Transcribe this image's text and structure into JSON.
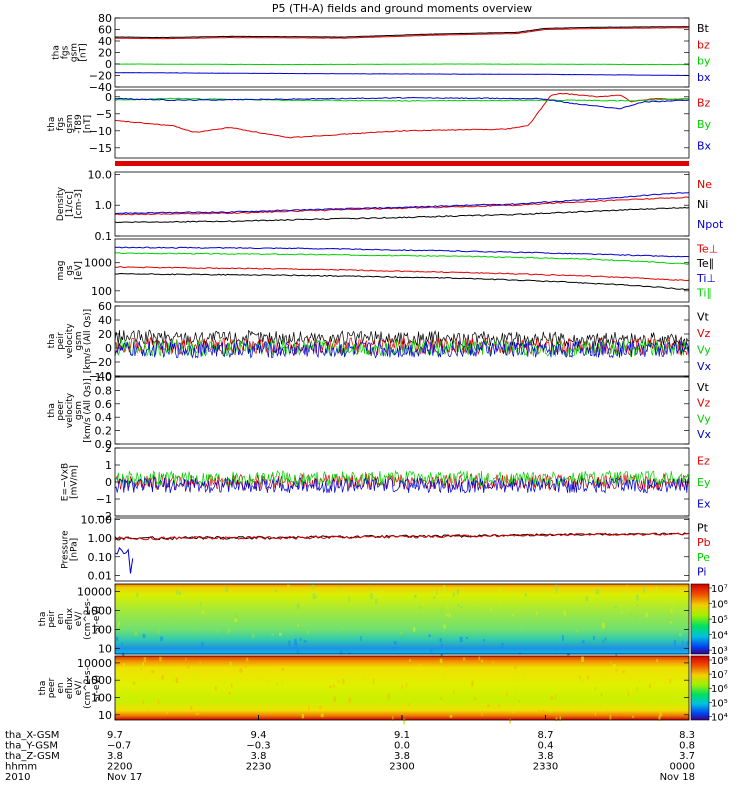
{
  "title": "P5 (TH-A) fields and ground moments overview",
  "colors": {
    "black": "#000000",
    "red": "#e00000",
    "green": "#00d000",
    "blue": "#0000d0"
  },
  "chart_data": [
    {
      "id": "fgs",
      "type": "line",
      "ylabel_lines": [
        "tha",
        "fgs",
        "gsm",
        "[nT]"
      ],
      "ylim": [
        -40,
        80
      ],
      "yticks": [
        {
          "v": 80,
          "t": "80"
        },
        {
          "v": 60,
          "t": "60"
        },
        {
          "v": 40,
          "t": "40"
        },
        {
          "v": 20,
          "t": "20"
        },
        {
          "v": 0,
          "t": "0"
        },
        {
          "v": -20,
          "t": "−20"
        },
        {
          "v": -40,
          "t": "−40"
        }
      ],
      "series": [
        {
          "name": "Bt",
          "color": "black",
          "points": [
            [
              0,
              47
            ],
            [
              0.08,
              46
            ],
            [
              0.2,
              48
            ],
            [
              0.4,
              47
            ],
            [
              0.55,
              52
            ],
            [
              0.7,
              55
            ],
            [
              0.75,
              62
            ],
            [
              0.85,
              64
            ],
            [
              1,
              65
            ]
          ]
        },
        {
          "name": "bz",
          "color": "red",
          "points": [
            [
              0,
              45
            ],
            [
              0.08,
              44
            ],
            [
              0.2,
              46
            ],
            [
              0.4,
              45
            ],
            [
              0.55,
              50
            ],
            [
              0.7,
              53
            ],
            [
              0.75,
              60
            ],
            [
              0.85,
              62
            ],
            [
              1,
              63
            ]
          ]
        },
        {
          "name": "by",
          "color": "green",
          "points": [
            [
              0,
              0
            ],
            [
              0.3,
              -1
            ],
            [
              0.6,
              0
            ],
            [
              1,
              -1
            ]
          ]
        },
        {
          "name": "bx",
          "color": "blue",
          "points": [
            [
              0,
              -15
            ],
            [
              0.4,
              -17
            ],
            [
              0.75,
              -18
            ],
            [
              1,
              -20
            ]
          ]
        }
      ]
    },
    {
      "id": "fgs-dip",
      "type": "line",
      "ylabel_lines": [
        "tha",
        "fgs",
        "gsm",
        "-T89",
        "[nT]"
      ],
      "ylim": [
        -18,
        2
      ],
      "yticks": [
        {
          "v": 0,
          "t": "0"
        },
        {
          "v": -5,
          "t": "−5"
        },
        {
          "v": -10,
          "t": "−10"
        },
        {
          "v": -15,
          "t": "−15"
        }
      ],
      "series": [
        {
          "name": "Bz",
          "color": "red",
          "points": [
            [
              0,
              -7
            ],
            [
              0.1,
              -8.5
            ],
            [
              0.14,
              -10.5
            ],
            [
              0.2,
              -9
            ],
            [
              0.3,
              -12
            ],
            [
              0.5,
              -10
            ],
            [
              0.68,
              -9.5
            ],
            [
              0.72,
              -8.5
            ],
            [
              0.76,
              0.5
            ],
            [
              0.78,
              1
            ],
            [
              0.84,
              0
            ],
            [
              0.88,
              0.5
            ],
            [
              0.9,
              -1.5
            ],
            [
              0.94,
              -0.5
            ],
            [
              1,
              -1
            ]
          ]
        },
        {
          "name": "By",
          "color": "green",
          "points": [
            [
              0,
              -1
            ],
            [
              0.1,
              -0.5
            ],
            [
              0.3,
              -1
            ],
            [
              0.5,
              -1.2
            ],
            [
              0.72,
              -1
            ],
            [
              0.8,
              -1
            ],
            [
              0.9,
              -1.2
            ],
            [
              1,
              -0.5
            ]
          ]
        },
        {
          "name": "Bx",
          "color": "blue",
          "points": [
            [
              0,
              -0.5
            ],
            [
              0.1,
              -1
            ],
            [
              0.3,
              -0.7
            ],
            [
              0.5,
              -0.3
            ],
            [
              0.7,
              -0.5
            ],
            [
              0.74,
              -0.5
            ],
            [
              0.8,
              -2
            ],
            [
              0.88,
              -3.5
            ],
            [
              0.92,
              -1.5
            ],
            [
              1,
              -1
            ]
          ]
        }
      ]
    },
    {
      "id": "density",
      "type": "line",
      "scale": "log",
      "ylabel_lines": [
        "Density",
        "[1/cc]",
        "[cm-3]"
      ],
      "ylim": [
        0.1,
        12
      ],
      "yticks": [
        {
          "v": 10,
          "t": "10.0"
        },
        {
          "v": 1,
          "t": "1.0"
        },
        {
          "v": 0.1,
          "t": "0.1"
        }
      ],
      "series": [
        {
          "name": "Ne",
          "color": "red",
          "points": [
            [
              0,
              0.5
            ],
            [
              0.2,
              0.55
            ],
            [
              0.5,
              0.8
            ],
            [
              0.7,
              1
            ],
            [
              0.85,
              1.4
            ],
            [
              1,
              1.8
            ]
          ]
        },
        {
          "name": "Ni",
          "color": "black",
          "points": [
            [
              0,
              0.28
            ],
            [
              0.2,
              0.3
            ],
            [
              0.5,
              0.4
            ],
            [
              0.7,
              0.5
            ],
            [
              0.85,
              0.65
            ],
            [
              1,
              0.85
            ]
          ]
        },
        {
          "name": "Npot",
          "color": "blue",
          "points": [
            [
              0,
              0.55
            ],
            [
              0.2,
              0.6
            ],
            [
              0.5,
              0.85
            ],
            [
              0.7,
              1.1
            ],
            [
              0.85,
              1.6
            ],
            [
              1,
              2.6
            ]
          ]
        }
      ]
    },
    {
      "id": "temperature",
      "type": "line",
      "scale": "log",
      "ylabel_lines": [
        "mag",
        "gs",
        "[eV]"
      ],
      "ylim": [
        40,
        7000
      ],
      "yticks": [
        {
          "v": 1000,
          "t": "1000"
        },
        {
          "v": 100,
          "t": "100"
        }
      ],
      "series": [
        {
          "name": "Te⊥",
          "color": "red",
          "points": [
            [
              0,
              700
            ],
            [
              0.3,
              600
            ],
            [
              0.6,
              450
            ],
            [
              0.8,
              350
            ],
            [
              1,
              230
            ]
          ]
        },
        {
          "name": "Te∥",
          "color": "black",
          "points": [
            [
              0,
              400
            ],
            [
              0.3,
              360
            ],
            [
              0.6,
              280
            ],
            [
              0.8,
              200
            ],
            [
              1,
              110
            ]
          ]
        },
        {
          "name": "Ti⊥",
          "color": "blue",
          "points": [
            [
              0,
              3500
            ],
            [
              0.3,
              3300
            ],
            [
              0.6,
              2600
            ],
            [
              0.8,
              2100
            ],
            [
              1,
              1600
            ]
          ]
        },
        {
          "name": "Ti∥",
          "color": "green",
          "points": [
            [
              0,
              2200
            ],
            [
              0.3,
              2000
            ],
            [
              0.6,
              1700
            ],
            [
              0.8,
              1400
            ],
            [
              1,
              900
            ]
          ]
        }
      ]
    },
    {
      "id": "peir-velocity",
      "type": "line",
      "ylabel_lines": [
        "tha",
        "peir",
        "velocity",
        "gsm",
        "[km/s (All Qs)]"
      ],
      "ylim": [
        -40,
        60
      ],
      "yticks": [
        {
          "v": 60,
          "t": "60"
        },
        {
          "v": 40,
          "t": "40"
        },
        {
          "v": 20,
          "t": "20"
        },
        {
          "v": 0,
          "t": "0"
        },
        {
          "v": -20,
          "t": "−20"
        },
        {
          "v": -40,
          "t": "−40"
        }
      ],
      "series": [
        {
          "name": "Vt",
          "color": "black",
          "points": [
            [
              0,
              15
            ],
            [
              1,
              12
            ]
          ]
        },
        {
          "name": "Vz",
          "color": "red",
          "points": [
            [
              0,
              3
            ],
            [
              1,
              2
            ]
          ]
        },
        {
          "name": "Vy",
          "color": "green",
          "points": [
            [
              0,
              0
            ],
            [
              1,
              0
            ]
          ]
        },
        {
          "name": "Vx",
          "color": "blue",
          "points": [
            [
              0,
              -2
            ],
            [
              1,
              -2
            ]
          ]
        }
      ]
    },
    {
      "id": "peer-velocity",
      "type": "line",
      "ylabel_lines": [
        "tha",
        "peer",
        "velocity",
        "gsm",
        "[km/s (All Qs)]"
      ],
      "ylim": [
        0,
        1
      ],
      "yticks": [
        {
          "v": 1,
          "t": "1.0"
        },
        {
          "v": 0.8,
          "t": "0.8"
        },
        {
          "v": 0.6,
          "t": "0.6"
        },
        {
          "v": 0.4,
          "t": "0.4"
        },
        {
          "v": 0.2,
          "t": "0.2"
        },
        {
          "v": 0,
          "t": "0.0"
        }
      ],
      "series": [
        {
          "name": "Vt",
          "color": "black",
          "points": []
        },
        {
          "name": "Vz",
          "color": "red",
          "points": []
        },
        {
          "name": "Vy",
          "color": "green",
          "points": []
        },
        {
          "name": "Vx",
          "color": "blue",
          "points": []
        }
      ]
    },
    {
      "id": "efield",
      "type": "line",
      "ylabel_lines": [
        "E=−VxB",
        "[mV/m]"
      ],
      "ylim": [
        -2,
        2
      ],
      "yticks": [
        {
          "v": 2,
          "t": "2"
        },
        {
          "v": 1,
          "t": "1"
        },
        {
          "v": 0,
          "t": "0"
        },
        {
          "v": -1,
          "t": "−1"
        },
        {
          "v": -2,
          "t": "−2"
        }
      ],
      "series": [
        {
          "name": "Ez",
          "color": "red",
          "points": [
            [
              0,
              0
            ],
            [
              1,
              0
            ]
          ]
        },
        {
          "name": "Ey",
          "color": "green",
          "points": [
            [
              0,
              0.2
            ],
            [
              1,
              0.2
            ]
          ]
        },
        {
          "name": "Ex",
          "color": "blue",
          "points": [
            [
              0,
              -0.2
            ],
            [
              1,
              -0.2
            ]
          ]
        }
      ]
    },
    {
      "id": "pressure",
      "type": "line",
      "scale": "log",
      "ylabel_lines": [
        "Pressure",
        "[nPa]"
      ],
      "ylim": [
        0.005,
        12
      ],
      "yticks": [
        {
          "v": 10,
          "t": "10.00"
        },
        {
          "v": 1,
          "t": "1.00"
        },
        {
          "v": 0.1,
          "t": "0.10"
        },
        {
          "v": 0.01,
          "t": "0.01"
        }
      ],
      "series": [
        {
          "name": "Pt",
          "color": "black",
          "points": [
            [
              0,
              1
            ],
            [
              0.3,
              1.1
            ],
            [
              0.6,
              1.3
            ],
            [
              0.8,
              1.6
            ],
            [
              1,
              1.7
            ]
          ]
        },
        {
          "name": "Pb",
          "color": "red",
          "points": [
            [
              0,
              0.97
            ],
            [
              0.3,
              1.07
            ],
            [
              0.6,
              1.27
            ],
            [
              0.8,
              1.55
            ],
            [
              1,
              1.65
            ]
          ]
        },
        {
          "name": "Pe",
          "color": "green",
          "points": [
            [
              0,
              0.03
            ],
            [
              0.1,
              0.025
            ],
            [
              0.3,
              0.027
            ],
            [
              0.5,
              0.025
            ],
            [
              0.7,
              0.03
            ],
            [
              0.8,
              0.028
            ],
            [
              1,
              0.03
            ]
          ]
        },
        {
          "name": "Pi",
          "color": "blue",
          "points": [
            [
              0,
              0.12
            ],
            [
              0.5,
              0.11
            ],
            [
              1,
              0.1
            ]
          ]
        }
      ]
    },
    {
      "id": "peir-spectrogram",
      "type": "heatmap",
      "ylabel_lines": [
        "tha",
        "peir",
        "en",
        "eflux",
        "eV/",
        "(cm^2-s-",
        "sr-eV)"
      ],
      "ylim": [
        5,
        25000
      ],
      "yticks": [
        {
          "v": 10000,
          "t": "10000"
        },
        {
          "v": 1000,
          "t": "1000"
        },
        {
          "v": 100,
          "t": "100"
        },
        {
          "v": 10,
          "t": "10"
        }
      ],
      "colorbar": {
        "min_exp": 3,
        "max_exp": 7,
        "labels": [
          "10⁷",
          "10⁶",
          "10⁵",
          "10⁴",
          "10³"
        ]
      }
    },
    {
      "id": "peer-spectrogram",
      "type": "heatmap",
      "ylabel_lines": [
        "tha",
        "peer",
        "en",
        "eflux",
        "eV/",
        "(cm^2-s-",
        "sr-eV)"
      ],
      "ylim": [
        5,
        25000
      ],
      "yticks": [
        {
          "v": 10000,
          "t": "10000"
        },
        {
          "v": 1000,
          "t": "1000"
        },
        {
          "v": 100,
          "t": "100"
        },
        {
          "v": 10,
          "t": "10"
        }
      ],
      "colorbar": {
        "min_exp": 4,
        "max_exp": 8,
        "labels": [
          "10⁸",
          "10⁷",
          "10⁶",
          "10⁵",
          "10⁴"
        ]
      }
    }
  ],
  "x_axis": {
    "row_labels": [
      "tha_X-GSM",
      "tha_Y-GSM",
      "tha_Z-GSM",
      "hhmm",
      "2010"
    ],
    "ticks": [
      {
        "x": 0,
        "vals": [
          "9.7",
          "−0.7",
          "3.8",
          "2200",
          "Nov 17"
        ]
      },
      {
        "x": 0.25,
        "vals": [
          "9.4",
          "−0.3",
          "3.8",
          "2230",
          ""
        ]
      },
      {
        "x": 0.5,
        "vals": [
          "9.1",
          "0.0",
          "3.8",
          "2300",
          ""
        ]
      },
      {
        "x": 0.75,
        "vals": [
          "8.7",
          "0.4",
          "3.8",
          "2330",
          ""
        ]
      },
      {
        "x": 1,
        "vals": [
          "8.3",
          "0.8",
          "3.7",
          "0000",
          "Nov 18"
        ]
      }
    ]
  }
}
